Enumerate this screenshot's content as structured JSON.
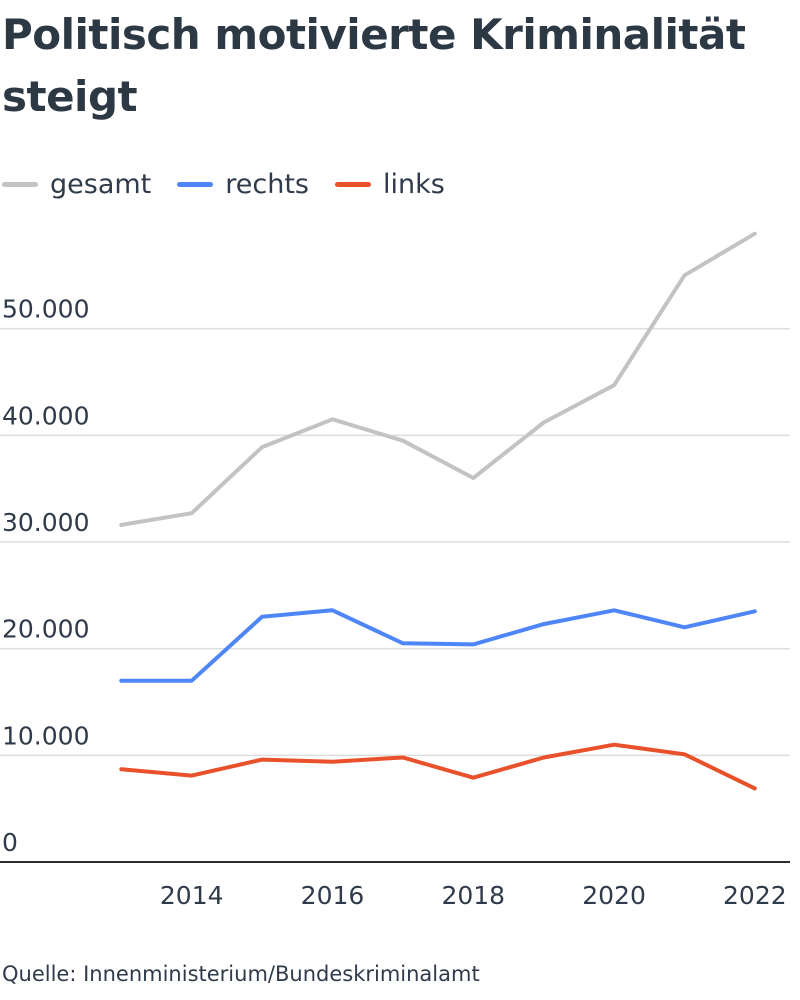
{
  "title": "Politisch motivierte Kriminalität steigt",
  "source": "Quelle: Innenministerium/Bundeskriminalamt",
  "chart_data": {
    "type": "line",
    "title": "Politisch motivierte Kriminalität steigt",
    "xlabel": "",
    "ylabel": "",
    "x": [
      2013,
      2014,
      2015,
      2016,
      2017,
      2018,
      2019,
      2020,
      2021,
      2022
    ],
    "x_ticks": [
      "2014",
      "2016",
      "2018",
      "2020",
      "2022"
    ],
    "y_ticks": [
      "0",
      "10.000",
      "20.000",
      "30.000",
      "40.000",
      "50.000"
    ],
    "y_tick_values": [
      0,
      10000,
      20000,
      30000,
      40000,
      50000
    ],
    "ylim": [
      0,
      60000
    ],
    "xlim": [
      2012.2,
      2022.4
    ],
    "grid": true,
    "legend_position": "top-left",
    "series": [
      {
        "name": "gesamt",
        "color": "#c3c3c3",
        "values": [
          31600,
          32700,
          38900,
          41500,
          39500,
          36000,
          41200,
          44700,
          55000,
          58900
        ]
      },
      {
        "name": "rechts",
        "color": "#4f86f7",
        "values": [
          17000,
          17000,
          23000,
          23600,
          20500,
          20400,
          22300,
          23600,
          22000,
          23500
        ]
      },
      {
        "name": "links",
        "color": "#e8512a",
        "values": [
          8700,
          8100,
          9600,
          9400,
          9800,
          7900,
          9800,
          11000,
          10100,
          6900
        ]
      }
    ]
  }
}
